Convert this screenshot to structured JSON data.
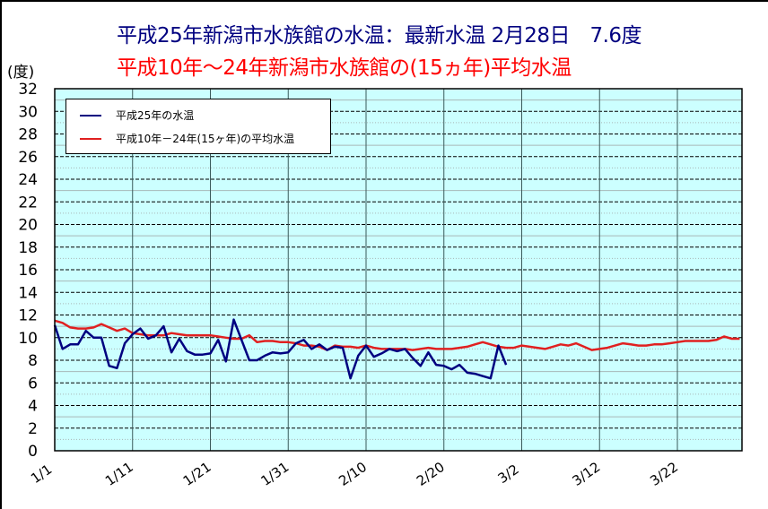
{
  "header": {
    "title_line1": "平成25年新潟市水族館の水温：最新水温 2月28日　7.6度",
    "title_line2": "平成10年～24年新潟市水族館の(15ヵ年)平均水温",
    "y_unit": "(度)"
  },
  "colors": {
    "plot_bg": "#ccffff",
    "current_series": "#000080",
    "average_series": "#e02020",
    "title1": "#000080",
    "title2": "#ff0000"
  },
  "legend": {
    "items": [
      {
        "label": "平成25年の水温",
        "color": "#000080"
      },
      {
        "label": "平成10年－24年(15ヶ年)の平均水温",
        "color": "#e02020"
      }
    ]
  },
  "chart_data": {
    "type": "line",
    "title": "平成25年新潟市水族館の水温：最新水温 2月28日 7.6度 / 平成10年～24年新潟市水族館の(15ヵ年)平均水温",
    "xlabel": "",
    "ylabel": "(度)",
    "ylim": [
      0,
      32
    ],
    "yticks": [
      0,
      2,
      4,
      6,
      8,
      10,
      12,
      14,
      16,
      18,
      20,
      22,
      24,
      26,
      28,
      30,
      32
    ],
    "x_range_days": [
      0,
      88.3
    ],
    "xticks": [
      {
        "label": "1/1",
        "day": 0
      },
      {
        "label": "1/11",
        "day": 10
      },
      {
        "label": "1/21",
        "day": 20
      },
      {
        "label": "1/31",
        "day": 30
      },
      {
        "label": "2/10",
        "day": 40
      },
      {
        "label": "2/20",
        "day": 50
      },
      {
        "label": "3/2",
        "day": 60
      },
      {
        "label": "3/12",
        "day": 70
      },
      {
        "label": "3/22",
        "day": 80
      }
    ],
    "grid": {
      "horizontal": true,
      "vertical": true
    },
    "legend_position": "upper-left",
    "series": [
      {
        "name": "平成25年の水温",
        "color": "#000080",
        "start_date": "1/1",
        "values": [
          11.1,
          9.0,
          9.4,
          9.4,
          10.6,
          10.0,
          10.0,
          7.5,
          7.3,
          9.5,
          10.3,
          10.8,
          9.9,
          10.2,
          11.0,
          8.7,
          9.9,
          8.8,
          8.5,
          8.5,
          8.6,
          9.8,
          7.9,
          11.6,
          9.8,
          8.0,
          8.0,
          8.4,
          8.7,
          8.6,
          8.7,
          9.5,
          9.8,
          9.0,
          9.4,
          8.9,
          9.2,
          9.1,
          6.4,
          8.4,
          9.3,
          8.3,
          8.6,
          9.0,
          8.8,
          9.0,
          8.2,
          7.5,
          8.7,
          7.6,
          7.5,
          7.2,
          7.6,
          6.9,
          6.8,
          6.6,
          6.4,
          9.3,
          7.6
        ]
      },
      {
        "name": "平成10年－24年(15ヶ年)の平均水温",
        "color": "#e02020",
        "start_date": "1/1",
        "values": [
          11.5,
          11.3,
          10.9,
          10.8,
          10.8,
          10.9,
          11.2,
          10.9,
          10.6,
          10.8,
          10.4,
          10.3,
          10.2,
          10.2,
          10.2,
          10.4,
          10.3,
          10.2,
          10.2,
          10.2,
          10.2,
          10.1,
          10.0,
          9.9,
          9.9,
          10.2,
          9.6,
          9.7,
          9.7,
          9.6,
          9.6,
          9.5,
          9.3,
          9.3,
          9.2,
          8.9,
          9.3,
          9.2,
          9.2,
          9.1,
          9.3,
          9.1,
          9.0,
          9.0,
          9.0,
          9.0,
          8.9,
          9.0,
          9.1,
          9.0,
          9.0,
          9.0,
          9.1,
          9.2,
          9.4,
          9.6,
          9.4,
          9.2,
          9.1,
          9.1,
          9.3,
          9.2,
          9.1,
          9.0,
          9.2,
          9.4,
          9.3,
          9.5,
          9.2,
          8.9,
          9.0,
          9.1,
          9.3,
          9.5,
          9.4,
          9.3,
          9.3,
          9.4,
          9.4,
          9.5,
          9.6,
          9.7,
          9.7,
          9.7,
          9.7,
          9.8,
          10.1,
          9.9,
          9.9
        ]
      }
    ]
  }
}
